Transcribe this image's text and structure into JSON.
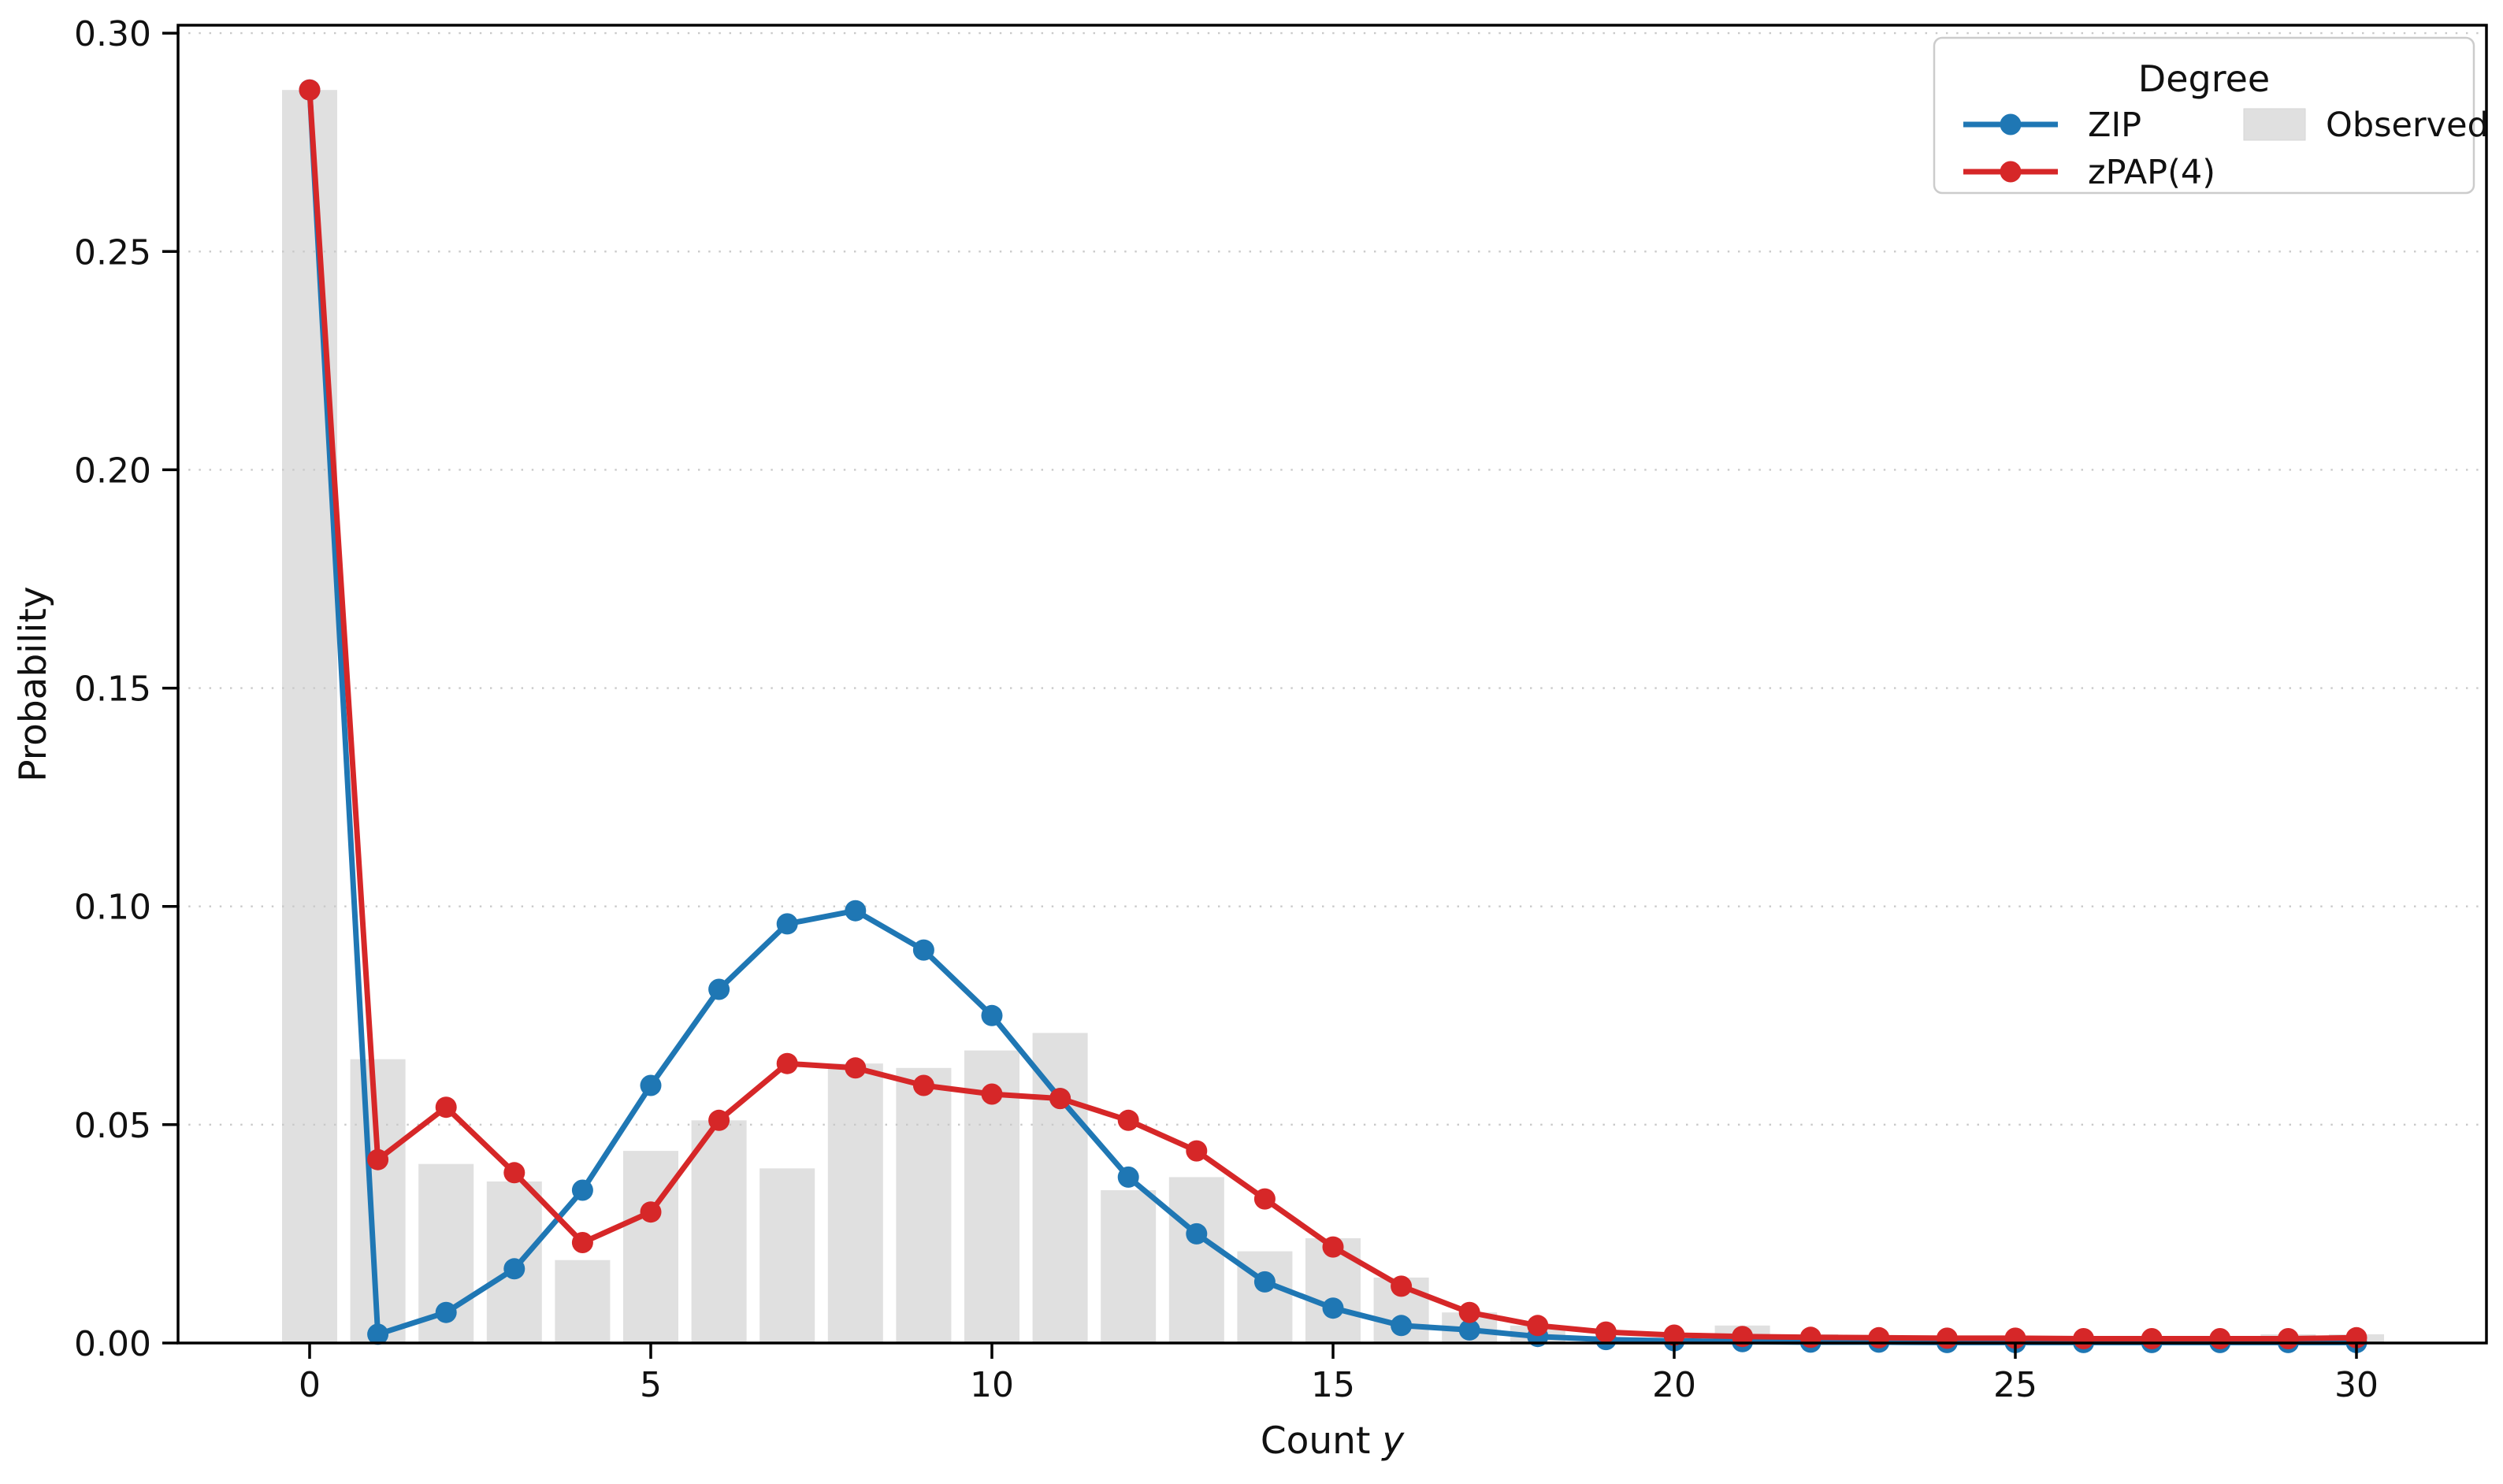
{
  "chart_data": {
    "type": "bar+line",
    "title": "",
    "xlabel": "Count y",
    "xlabel_parts": [
      "Count ",
      "y"
    ],
    "ylabel": "Probability",
    "x": [
      0,
      1,
      2,
      3,
      4,
      5,
      6,
      7,
      8,
      9,
      10,
      11,
      12,
      13,
      14,
      15,
      16,
      17,
      18,
      19,
      20,
      21,
      22,
      23,
      24,
      25,
      26,
      27,
      28,
      29,
      30
    ],
    "series": [
      {
        "name": "Observed",
        "type": "bar",
        "color": "#e0e0e0",
        "values": [
          0.287,
          0.065,
          0.041,
          0.037,
          0.019,
          0.044,
          0.051,
          0.04,
          0.064,
          0.063,
          0.067,
          0.071,
          0.035,
          0.038,
          0.021,
          0.024,
          0.015,
          0.007,
          0.004,
          0,
          0,
          0.004,
          0.002,
          0,
          0,
          0,
          0,
          0,
          0,
          0.002,
          0.002
        ]
      },
      {
        "name": "ZIP",
        "type": "line",
        "color": "#1f77b4",
        "values": [
          0.287,
          0.002,
          0.007,
          0.017,
          0.035,
          0.059,
          0.081,
          0.096,
          0.099,
          0.09,
          0.075,
          0.056,
          0.038,
          0.025,
          0.014,
          0.008,
          0.004,
          0.003,
          0.0015,
          0.0008,
          0.0005,
          0.0003,
          0.0002,
          0.0002,
          0.0001,
          0.0001,
          0.0001,
          0.0001,
          0.0001,
          0.0001,
          0.0001
        ]
      },
      {
        "name": "zPAP(4)",
        "type": "line",
        "color": "#d62728",
        "values": [
          0.287,
          0.042,
          0.054,
          0.039,
          0.023,
          0.03,
          0.051,
          0.064,
          0.063,
          0.059,
          0.057,
          0.056,
          0.051,
          0.044,
          0.033,
          0.022,
          0.013,
          0.007,
          0.004,
          0.0025,
          0.0018,
          0.0015,
          0.0013,
          0.0012,
          0.0011,
          0.0011,
          0.001,
          0.001,
          0.001,
          0.001,
          0.0012
        ]
      }
    ],
    "xlim": [
      -1.94,
      31.94
    ],
    "ylim": [
      0,
      0.302
    ],
    "x_ticks": [
      0,
      5,
      10,
      15,
      20,
      25,
      30
    ],
    "x_tick_labels": [
      "0",
      "5",
      "10",
      "15",
      "20",
      "25",
      "30"
    ],
    "y_ticks": [
      0.0,
      0.05,
      0.1,
      0.15,
      0.2,
      0.25,
      0.3
    ],
    "y_tick_labels": [
      "0.00",
      "0.05",
      "0.10",
      "0.15",
      "0.20",
      "0.25",
      "0.30"
    ],
    "grid": {
      "axis": "y",
      "style": "dotted",
      "color": "#c9c9c9"
    },
    "legend": {
      "title": "Degree",
      "position": "upper right",
      "columns": 2,
      "column1_series": [
        1,
        2
      ],
      "column2_series": [
        0
      ]
    }
  }
}
